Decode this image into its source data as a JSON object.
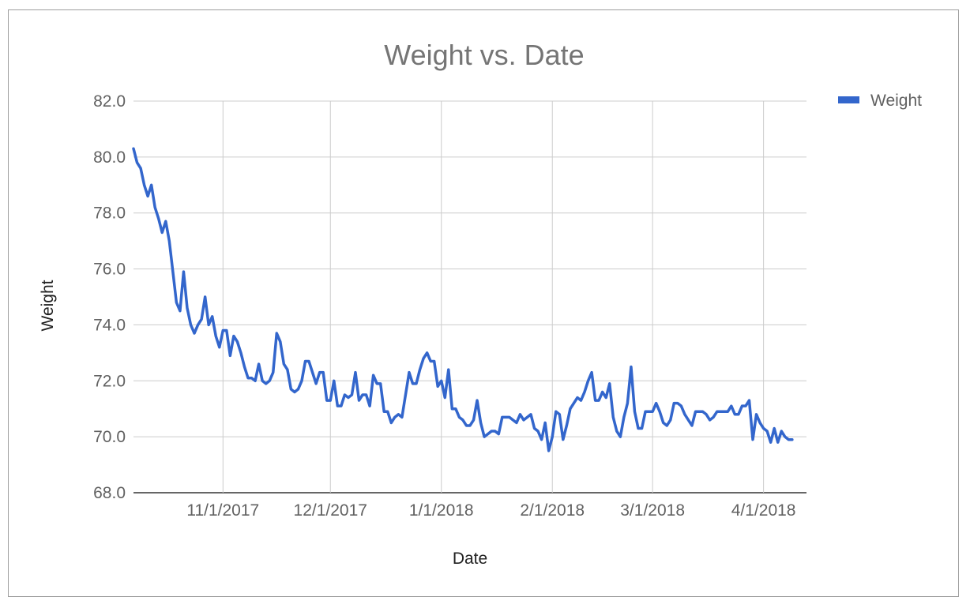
{
  "chart_data": {
    "type": "line",
    "title": "Weight vs. Date",
    "xlabel": "Date",
    "ylabel": "Weight",
    "ylim": [
      68,
      82
    ],
    "y_ticks": [
      "82.0",
      "80.0",
      "78.0",
      "76.0",
      "74.0",
      "72.0",
      "70.0",
      "68.0"
    ],
    "x_range": [
      "2017-10-07",
      "2018-04-13"
    ],
    "x_ticks": [
      {
        "date": "2017-11-01",
        "label": "11/1/2017"
      },
      {
        "date": "2017-12-01",
        "label": "12/1/2017"
      },
      {
        "date": "2018-01-01",
        "label": "1/1/2018"
      },
      {
        "date": "2018-02-01",
        "label": "2/1/2018"
      },
      {
        "date": "2018-03-01",
        "label": "3/1/2018"
      },
      {
        "date": "2018-04-01",
        "label": "4/1/2018"
      }
    ],
    "grid": true,
    "legend_position": "right",
    "series": [
      {
        "name": "Weight",
        "color": "#3366cc",
        "points": [
          [
            "2017-10-07",
            80.3
          ],
          [
            "2017-10-08",
            79.8
          ],
          [
            "2017-10-09",
            79.6
          ],
          [
            "2017-10-10",
            79.0
          ],
          [
            "2017-10-11",
            78.6
          ],
          [
            "2017-10-12",
            79.0
          ],
          [
            "2017-10-13",
            78.2
          ],
          [
            "2017-10-14",
            77.8
          ],
          [
            "2017-10-15",
            77.3
          ],
          [
            "2017-10-16",
            77.7
          ],
          [
            "2017-10-17",
            77.0
          ],
          [
            "2017-10-18",
            75.9
          ],
          [
            "2017-10-19",
            74.8
          ],
          [
            "2017-10-20",
            74.5
          ],
          [
            "2017-10-21",
            75.9
          ],
          [
            "2017-10-22",
            74.6
          ],
          [
            "2017-10-23",
            74.0
          ],
          [
            "2017-10-24",
            73.7
          ],
          [
            "2017-10-25",
            74.0
          ],
          [
            "2017-10-26",
            74.2
          ],
          [
            "2017-10-27",
            75.0
          ],
          [
            "2017-10-28",
            74.0
          ],
          [
            "2017-10-29",
            74.3
          ],
          [
            "2017-10-30",
            73.6
          ],
          [
            "2017-10-31",
            73.2
          ],
          [
            "2017-11-01",
            73.8
          ],
          [
            "2017-11-02",
            73.8
          ],
          [
            "2017-11-03",
            72.9
          ],
          [
            "2017-11-04",
            73.6
          ],
          [
            "2017-11-05",
            73.4
          ],
          [
            "2017-11-06",
            73.0
          ],
          [
            "2017-11-07",
            72.5
          ],
          [
            "2017-11-08",
            72.1
          ],
          [
            "2017-11-09",
            72.1
          ],
          [
            "2017-11-10",
            72.0
          ],
          [
            "2017-11-11",
            72.6
          ],
          [
            "2017-11-12",
            72.0
          ],
          [
            "2017-11-13",
            71.9
          ],
          [
            "2017-11-14",
            72.0
          ],
          [
            "2017-11-15",
            72.3
          ],
          [
            "2017-11-16",
            73.7
          ],
          [
            "2017-11-17",
            73.4
          ],
          [
            "2017-11-18",
            72.6
          ],
          [
            "2017-11-19",
            72.4
          ],
          [
            "2017-11-20",
            71.7
          ],
          [
            "2017-11-21",
            71.6
          ],
          [
            "2017-11-22",
            71.7
          ],
          [
            "2017-11-23",
            72.0
          ],
          [
            "2017-11-24",
            72.7
          ],
          [
            "2017-11-25",
            72.7
          ],
          [
            "2017-11-26",
            72.3
          ],
          [
            "2017-11-27",
            71.9
          ],
          [
            "2017-11-28",
            72.3
          ],
          [
            "2017-11-29",
            72.3
          ],
          [
            "2017-11-30",
            71.3
          ],
          [
            "2017-12-01",
            71.3
          ],
          [
            "2017-12-02",
            72.0
          ],
          [
            "2017-12-03",
            71.1
          ],
          [
            "2017-12-04",
            71.1
          ],
          [
            "2017-12-05",
            71.5
          ],
          [
            "2017-12-06",
            71.4
          ],
          [
            "2017-12-07",
            71.5
          ],
          [
            "2017-12-08",
            72.3
          ],
          [
            "2017-12-09",
            71.3
          ],
          [
            "2017-12-10",
            71.5
          ],
          [
            "2017-12-11",
            71.5
          ],
          [
            "2017-12-12",
            71.1
          ],
          [
            "2017-12-13",
            72.2
          ],
          [
            "2017-12-14",
            71.9
          ],
          [
            "2017-12-15",
            71.9
          ],
          [
            "2017-12-16",
            70.9
          ],
          [
            "2017-12-17",
            70.9
          ],
          [
            "2017-12-18",
            70.5
          ],
          [
            "2017-12-19",
            70.7
          ],
          [
            "2017-12-20",
            70.8
          ],
          [
            "2017-12-21",
            70.7
          ],
          [
            "2017-12-22",
            71.5
          ],
          [
            "2017-12-23",
            72.3
          ],
          [
            "2017-12-24",
            71.9
          ],
          [
            "2017-12-25",
            71.9
          ],
          [
            "2017-12-26",
            72.4
          ],
          [
            "2017-12-27",
            72.8
          ],
          [
            "2017-12-28",
            73.0
          ],
          [
            "2017-12-29",
            72.7
          ],
          [
            "2017-12-30",
            72.7
          ],
          [
            "2017-12-31",
            71.8
          ],
          [
            "2018-01-01",
            72.0
          ],
          [
            "2018-01-02",
            71.4
          ],
          [
            "2018-01-03",
            72.4
          ],
          [
            "2018-01-04",
            71.0
          ],
          [
            "2018-01-05",
            71.0
          ],
          [
            "2018-01-06",
            70.7
          ],
          [
            "2018-01-07",
            70.6
          ],
          [
            "2018-01-08",
            70.4
          ],
          [
            "2018-01-09",
            70.4
          ],
          [
            "2018-01-10",
            70.6
          ],
          [
            "2018-01-11",
            71.3
          ],
          [
            "2018-01-12",
            70.5
          ],
          [
            "2018-01-13",
            70.0
          ],
          [
            "2018-01-14",
            70.1
          ],
          [
            "2018-01-15",
            70.2
          ],
          [
            "2018-01-16",
            70.2
          ],
          [
            "2018-01-17",
            70.1
          ],
          [
            "2018-01-18",
            70.7
          ],
          [
            "2018-01-19",
            70.7
          ],
          [
            "2018-01-20",
            70.7
          ],
          [
            "2018-01-21",
            70.6
          ],
          [
            "2018-01-22",
            70.5
          ],
          [
            "2018-01-23",
            70.8
          ],
          [
            "2018-01-24",
            70.6
          ],
          [
            "2018-01-25",
            70.7
          ],
          [
            "2018-01-26",
            70.8
          ],
          [
            "2018-01-27",
            70.3
          ],
          [
            "2018-01-28",
            70.2
          ],
          [
            "2018-01-29",
            69.9
          ],
          [
            "2018-01-30",
            70.5
          ],
          [
            "2018-01-31",
            69.5
          ],
          [
            "2018-02-01",
            70.0
          ],
          [
            "2018-02-02",
            70.9
          ],
          [
            "2018-02-03",
            70.8
          ],
          [
            "2018-02-04",
            69.9
          ],
          [
            "2018-02-05",
            70.4
          ],
          [
            "2018-02-06",
            71.0
          ],
          [
            "2018-02-07",
            71.2
          ],
          [
            "2018-02-08",
            71.4
          ],
          [
            "2018-02-09",
            71.3
          ],
          [
            "2018-02-10",
            71.6
          ],
          [
            "2018-02-11",
            72.0
          ],
          [
            "2018-02-12",
            72.3
          ],
          [
            "2018-02-13",
            71.3
          ],
          [
            "2018-02-14",
            71.3
          ],
          [
            "2018-02-15",
            71.6
          ],
          [
            "2018-02-16",
            71.4
          ],
          [
            "2018-02-17",
            71.9
          ],
          [
            "2018-02-18",
            70.7
          ],
          [
            "2018-02-19",
            70.2
          ],
          [
            "2018-02-20",
            70.0
          ],
          [
            "2018-02-21",
            70.7
          ],
          [
            "2018-02-22",
            71.2
          ],
          [
            "2018-02-23",
            72.5
          ],
          [
            "2018-02-24",
            70.9
          ],
          [
            "2018-02-25",
            70.3
          ],
          [
            "2018-02-26",
            70.3
          ],
          [
            "2018-02-27",
            70.9
          ],
          [
            "2018-02-28",
            70.9
          ],
          [
            "2018-03-01",
            70.9
          ],
          [
            "2018-03-02",
            71.2
          ],
          [
            "2018-03-03",
            70.9
          ],
          [
            "2018-03-04",
            70.5
          ],
          [
            "2018-03-05",
            70.4
          ],
          [
            "2018-03-06",
            70.6
          ],
          [
            "2018-03-07",
            71.2
          ],
          [
            "2018-03-08",
            71.2
          ],
          [
            "2018-03-09",
            71.1
          ],
          [
            "2018-03-10",
            70.8
          ],
          [
            "2018-03-11",
            70.6
          ],
          [
            "2018-03-12",
            70.4
          ],
          [
            "2018-03-13",
            70.9
          ],
          [
            "2018-03-14",
            70.9
          ],
          [
            "2018-03-15",
            70.9
          ],
          [
            "2018-03-16",
            70.8
          ],
          [
            "2018-03-17",
            70.6
          ],
          [
            "2018-03-18",
            70.7
          ],
          [
            "2018-03-19",
            70.9
          ],
          [
            "2018-03-20",
            70.9
          ],
          [
            "2018-03-21",
            70.9
          ],
          [
            "2018-03-22",
            70.9
          ],
          [
            "2018-03-23",
            71.1
          ],
          [
            "2018-03-24",
            70.8
          ],
          [
            "2018-03-25",
            70.8
          ],
          [
            "2018-03-26",
            71.1
          ],
          [
            "2018-03-27",
            71.1
          ],
          [
            "2018-03-28",
            71.3
          ],
          [
            "2018-03-29",
            69.9
          ],
          [
            "2018-03-30",
            70.8
          ],
          [
            "2018-03-31",
            70.5
          ],
          [
            "2018-04-01",
            70.3
          ],
          [
            "2018-04-02",
            70.2
          ],
          [
            "2018-04-03",
            69.8
          ],
          [
            "2018-04-04",
            70.3
          ],
          [
            "2018-04-05",
            69.8
          ],
          [
            "2018-04-06",
            70.2
          ],
          [
            "2018-04-07",
            70.0
          ],
          [
            "2018-04-08",
            69.9
          ],
          [
            "2018-04-09",
            69.9
          ]
        ]
      }
    ]
  }
}
